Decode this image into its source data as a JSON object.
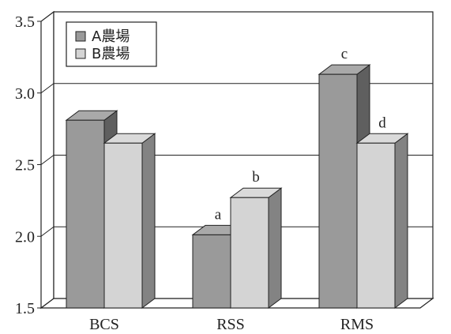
{
  "chart_data": {
    "type": "bar",
    "categories": [
      "BCS",
      "RSS",
      "RMS"
    ],
    "series": [
      {
        "name": "A農場",
        "values": [
          2.81,
          2.01,
          3.13
        ],
        "color": "#9a9a9a"
      },
      {
        "name": "B農場",
        "values": [
          2.65,
          2.27,
          2.65
        ],
        "color": "#d4d4d4"
      }
    ],
    "annotations": [
      {
        "category": "RSS",
        "series": "A農場",
        "text": "a"
      },
      {
        "category": "RSS",
        "series": "B農場",
        "text": "b"
      },
      {
        "category": "RMS",
        "series": "A農場",
        "text": "c"
      },
      {
        "category": "RMS",
        "series": "B農場",
        "text": "d"
      }
    ],
    "ylim": [
      1.5,
      3.5
    ],
    "yticks": [
      "1.5",
      "2.0",
      "2.5",
      "3.0",
      "3.5"
    ],
    "title": "",
    "xlabel": "",
    "ylabel": "",
    "grid": true,
    "legend_position": "top-left",
    "style": "3d-grouped-bar"
  }
}
